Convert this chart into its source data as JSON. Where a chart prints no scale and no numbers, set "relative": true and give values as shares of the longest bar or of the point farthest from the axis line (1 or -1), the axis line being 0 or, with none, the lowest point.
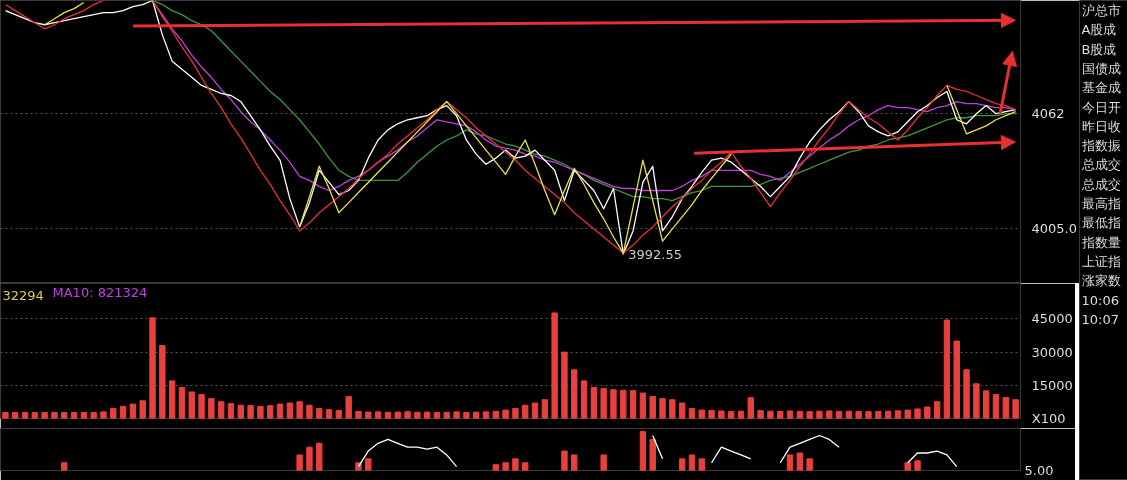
{
  "chart_data": [
    {
      "type": "line",
      "ylim": [
        3978,
        4118
      ],
      "yticks": [
        4062,
        {
          "value": 4005,
          "label": "4005.0"
        }
      ],
      "grid": "y",
      "tick_labels": "y",
      "categories": [
        null,
        null,
        null,
        null,
        null,
        null,
        null,
        null,
        null,
        null,
        null,
        null,
        null,
        null,
        null,
        null,
        null,
        null,
        null,
        null,
        null,
        null,
        null,
        null,
        null,
        null,
        null,
        null,
        null,
        null,
        null,
        null,
        null,
        null,
        null,
        null,
        null,
        null,
        null,
        null,
        null,
        null,
        null,
        null,
        null,
        null,
        null,
        null,
        null,
        null,
        null,
        null,
        null,
        null,
        null,
        null,
        null,
        null,
        null,
        null,
        null,
        null,
        null,
        null,
        null,
        null,
        null,
        null,
        null,
        null,
        null,
        null,
        null,
        null,
        null,
        null,
        null,
        null,
        null,
        null,
        null,
        null,
        null,
        null,
        null,
        null,
        null,
        null,
        null,
        null,
        null,
        null,
        null,
        null,
        null,
        null,
        null,
        null,
        null,
        null,
        null,
        null,
        null,
        null
      ],
      "series": [
        {
          "color": "#3a9a3a",
          "values": [
            null,
            null,
            null,
            null,
            null,
            null,
            null,
            null,
            null,
            null,
            null,
            null,
            null,
            null,
            null,
            4118,
            4116,
            4113,
            4111,
            4108,
            4106,
            4103,
            4098,
            4093,
            4088,
            4083,
            4078,
            4073,
            4069,
            4064,
            4059,
            4053,
            4047,
            4040,
            4034,
            4031,
            4029,
            4029,
            4029,
            4029,
            4029,
            4033,
            4038,
            4042,
            4046,
            4049,
            4051,
            4054,
            4052,
            4051,
            4049,
            4047,
            4046,
            4044,
            4042,
            4041,
            4039,
            4037,
            4034,
            4032,
            4029,
            4027,
            4025,
            4023,
            4021,
            4021,
            4020,
            4020,
            4019,
            4021,
            4023,
            4024,
            4026,
            4026,
            4026,
            4026,
            4026,
            4027,
            4029,
            4030,
            4031,
            4033,
            4035,
            4037,
            4039,
            4041,
            4043,
            4044,
            4046,
            4047,
            4049,
            4050,
            4051,
            4053,
            4055,
            4057,
            4059,
            4060,
            4060,
            4061,
            4061,
            4061,
            4062,
            4062
          ]
        },
        {
          "color": "#c040e0",
          "values": [
            null,
            null,
            null,
            null,
            null,
            null,
            null,
            null,
            null,
            null,
            null,
            null,
            null,
            null,
            null,
            4118,
            4111,
            4104,
            4098,
            4091,
            4085,
            4080,
            4074,
            4069,
            4063,
            4058,
            4054,
            4049,
            4044,
            4038,
            4031,
            4029,
            4026,
            4024,
            4026,
            4029,
            4031,
            4034,
            4038,
            4041,
            4044,
            4048,
            4051,
            4055,
            4059,
            4058,
            4057,
            4056,
            4053,
            4049,
            4046,
            4045,
            4044,
            4042,
            4041,
            4039,
            4038,
            4036,
            4034,
            4032,
            4030,
            4028,
            4026,
            4025,
            4025,
            4024,
            4024,
            4024,
            4024,
            4026,
            4029,
            4031,
            4034,
            4034,
            4034,
            4034,
            4034,
            4032,
            4031,
            4029,
            4033,
            4037,
            4041,
            4045,
            4049,
            4052,
            4056,
            4059,
            4061,
            4064,
            4066,
            4065,
            4065,
            4064,
            4063,
            4065,
            4066,
            4068,
            4067,
            4067,
            4066,
            4065,
            4065,
            4064
          ]
        },
        {
          "color": "#ffffff",
          "values": [
            4113,
            4111,
            4109,
            4107,
            4106,
            4107,
            4108,
            4109,
            4110,
            4111,
            4112,
            4112,
            4113,
            4115,
            4116,
            4118,
            4101,
            4088,
            4084,
            4080,
            4076,
            4074,
            4072,
            4071,
            4068,
            4061,
            4054,
            4046,
            4039,
            4020,
            4006,
            4018,
            4034,
            4028,
            4022,
            4024,
            4029,
            4040,
            4049,
            4054,
            4057,
            4059,
            4060,
            4061,
            4064,
            4066,
            4061,
            4049,
            4042,
            4037,
            4040,
            4044,
            4040,
            4041,
            4044,
            4039,
            4034,
            4019,
            4034,
            4029,
            4024,
            4015,
            4025,
            3992.55,
            4004,
            4028,
            4036,
            4004,
            4011,
            4020,
            4026,
            4033,
            4039,
            4040,
            4038,
            4034,
            4030,
            4026,
            4021,
            4026,
            4031,
            4040,
            4048,
            4054,
            4059,
            4063,
            4068,
            4063,
            4056,
            4053,
            4051,
            4053,
            4058,
            4063,
            4066,
            4070,
            4073,
            4059,
            4057,
            4062,
            4066,
            4062,
            4063,
            4064
          ],
          "value_labels": [
            null,
            null,
            null,
            null,
            null,
            null,
            null,
            null,
            null,
            null,
            null,
            null,
            null,
            null,
            null,
            null,
            null,
            null,
            null,
            null,
            null,
            null,
            null,
            null,
            null,
            null,
            null,
            null,
            null,
            null,
            null,
            null,
            null,
            null,
            null,
            null,
            null,
            null,
            null,
            null,
            null,
            null,
            null,
            null,
            null,
            null,
            null,
            null,
            null,
            null,
            null,
            null,
            null,
            null,
            null,
            null,
            null,
            null,
            null,
            null,
            null,
            null,
            null,
            "3992.55",
            null,
            null,
            null,
            null,
            null,
            null,
            null,
            null,
            null,
            null,
            null,
            null,
            null,
            null,
            null,
            null,
            null,
            null,
            null,
            null,
            null,
            null,
            null,
            null,
            null,
            null,
            null,
            null,
            null,
            null,
            null,
            null,
            null,
            null,
            null,
            null,
            null,
            null,
            null,
            null
          ]
        },
        {
          "color": "#e83030",
          "values": [
            4116,
            4113,
            4110,
            4107,
            4104,
            4106,
            4109,
            4111,
            4113,
            4116,
            4118,
            null,
            null,
            null,
            null,
            4118,
            4110,
            4103,
            4095,
            4088,
            4080,
            4072,
            4065,
            4057,
            4050,
            4042,
            4034,
            4027,
            4019,
            4012,
            4004,
            4008,
            4013,
            4017,
            4021,
            4025,
            4030,
            4034,
            4038,
            4042,
            4047,
            4051,
            4055,
            4059,
            4064,
            4068,
            4064,
            4060,
            4055,
            4051,
            4047,
            4043,
            4039,
            4034,
            4030,
            4026,
            4022,
            4018,
            4013,
            4009,
            4005,
            4001,
            3997,
            3993,
            3997,
            4002,
            4006,
            4011,
            4016,
            4020,
            4025,
            4029,
            4034,
            4038,
            4043,
            4036,
            4030,
            4023,
            4016,
            4023,
            4029,
            4036,
            4042,
            4049,
            4055,
            4062,
            4068,
            4064,
            4060,
            4057,
            4053,
            4049,
            4054,
            4060,
            4065,
            4071,
            4076,
            4074,
            4073,
            4071,
            4069,
            4067,
            4066,
            4064
          ]
        },
        {
          "color": "#f0e040",
          "values": [
            null,
            null,
            null,
            null,
            4106,
            4109,
            4112,
            4114,
            4117,
            null,
            null,
            null,
            null,
            null,
            null,
            null,
            null,
            null,
            null,
            null,
            null,
            null,
            null,
            null,
            null,
            null,
            null,
            null,
            null,
            null,
            4006,
            4021,
            4036,
            4025,
            4013,
            4018,
            4023,
            4028,
            4033,
            4038,
            4043,
            4048,
            4053,
            4058,
            4063,
            4068,
            4062,
            4056,
            4050,
            4044,
            4038,
            4032,
            4041,
            4049,
            4037,
            4024,
            4012,
            4024,
            4035,
            4027,
            4018,
            4010,
            4001,
            3993,
            4016,
            4039,
            4019,
            3999,
            4005,
            4011,
            4017,
            4024,
            4030,
            4036,
            4042,
            null,
            null,
            null,
            null,
            null,
            null,
            null,
            null,
            null,
            null,
            null,
            null,
            null,
            null,
            null,
            null,
            null,
            null,
            null,
            null,
            null,
            4076,
            4064,
            4052,
            4054,
            4056,
            4059,
            4061,
            4063
          ]
        }
      ]
    },
    {
      "type": "bar",
      "categories": [
        null,
        null,
        null,
        null,
        null,
        null,
        null,
        null,
        null,
        null,
        null,
        null,
        null,
        null,
        null,
        null,
        null,
        null,
        null,
        null,
        null,
        null,
        null,
        null,
        null,
        null,
        null,
        null,
        null,
        null,
        null,
        null,
        null,
        null,
        null,
        null,
        null,
        null,
        null,
        null,
        null,
        null,
        null,
        null,
        null,
        null,
        null,
        null,
        null,
        null,
        null,
        null,
        null,
        null,
        null,
        null,
        null,
        null,
        null,
        null,
        null,
        null,
        null,
        null,
        null,
        null,
        null,
        null,
        null,
        null,
        null,
        null,
        null,
        null,
        null,
        null,
        null,
        null,
        null,
        null,
        null,
        null,
        null,
        null,
        null,
        null,
        null,
        null,
        null,
        null,
        null,
        null,
        null,
        null,
        null,
        null,
        null,
        null,
        null,
        null,
        null,
        null,
        null,
        null
      ],
      "values": [
        2700,
        2700,
        2800,
        2700,
        2700,
        2800,
        2700,
        2700,
        2700,
        2700,
        3000,
        4500,
        5500,
        6500,
        8000,
        45500,
        33000,
        17000,
        14000,
        12000,
        10800,
        9000,
        7600,
        6800,
        6000,
        5900,
        5500,
        5800,
        6500,
        7000,
        7600,
        6000,
        4500,
        4000,
        3600,
        9900,
        3200,
        2900,
        3000,
        2800,
        2900,
        3100,
        2800,
        2900,
        2700,
        2800,
        3000,
        2700,
        2900,
        3000,
        3200,
        3800,
        4500,
        6000,
        7000,
        8500,
        47700,
        30000,
        22000,
        17000,
        14000,
        13500,
        13000,
        12800,
        12600,
        11500,
        10000,
        9000,
        8500,
        7000,
        4500,
        3800,
        3600,
        3400,
        3200,
        3300,
        9400,
        3600,
        3300,
        3200,
        3400,
        3200,
        3100,
        3300,
        3400,
        3200,
        3300,
        3200,
        3100,
        3200,
        3300,
        3500,
        3800,
        4300,
        5200,
        7600,
        44500,
        35000,
        22000,
        15700,
        12500,
        10800,
        9500,
        8500
      ],
      "color": "#e8413c",
      "ylim": [
        0,
        61000
      ],
      "yticks": [
        15000,
        30000,
        45000
      ],
      "grid": "y",
      "tick_labels": "y",
      "annotations": [
        "32294",
        "MA10: 821324",
        "X100"
      ]
    },
    {
      "type": "bar",
      "relative": true,
      "tick_labels": false,
      "categories": [
        null,
        null,
        null,
        null,
        null,
        null,
        null,
        null,
        null,
        null,
        null,
        null,
        null,
        null,
        null,
        null,
        null,
        null,
        null,
        null,
        null,
        null,
        null,
        null,
        null,
        null,
        null,
        null,
        null,
        null,
        null,
        null,
        null,
        null,
        null,
        null,
        null,
        null,
        null,
        null,
        null,
        null,
        null,
        null,
        null,
        null,
        null,
        null,
        null,
        null,
        null,
        null,
        null,
        null,
        null,
        null,
        null,
        null,
        null,
        null,
        null,
        null,
        null,
        null,
        null,
        null,
        null,
        null,
        null,
        null,
        null,
        null,
        null,
        null,
        null,
        null,
        null,
        null,
        null,
        null,
        null,
        null,
        null,
        null,
        null,
        null,
        null,
        null,
        null,
        null,
        null,
        null,
        null,
        null,
        null,
        null,
        null,
        null,
        null,
        null,
        null,
        null,
        null,
        null
      ],
      "series": [
        {
          "color": "#e8413c",
          "values": [
            null,
            null,
            null,
            null,
            null,
            null,
            0.2,
            null,
            null,
            null,
            null,
            null,
            null,
            null,
            null,
            null,
            null,
            null,
            null,
            null,
            null,
            null,
            null,
            null,
            null,
            null,
            null,
            null,
            null,
            null,
            0.4,
            0.6,
            0.7,
            null,
            null,
            null,
            0.2,
            0.3,
            null,
            null,
            null,
            null,
            null,
            null,
            null,
            null,
            null,
            null,
            null,
            null,
            0.15,
            0.2,
            0.3,
            0.2,
            null,
            null,
            null,
            0.5,
            0.4,
            null,
            null,
            0.4,
            null,
            null,
            null,
            1,
            0.8,
            null,
            null,
            0.3,
            0.4,
            0.3,
            null,
            null,
            null,
            null,
            null,
            null,
            null,
            null,
            0.4,
            0.45,
            0.3,
            null,
            null,
            null,
            null,
            null,
            null,
            null,
            null,
            null,
            0.2,
            0.25,
            null,
            null,
            null,
            null,
            null,
            null,
            null,
            null,
            null,
            null
          ]
        },
        {
          "type": "line",
          "color": "#ffffff",
          "values": [
            null,
            null,
            null,
            null,
            null,
            null,
            null,
            null,
            null,
            null,
            null,
            null,
            null,
            null,
            null,
            null,
            null,
            null,
            null,
            null,
            null,
            null,
            null,
            null,
            null,
            null,
            null,
            null,
            null,
            null,
            null,
            null,
            null,
            null,
            null,
            null,
            0.1,
            0.5,
            0.7,
            0.8,
            0.7,
            0.6,
            0.6,
            0.55,
            0.6,
            0.4,
            0.1,
            null,
            null,
            null,
            null,
            null,
            null,
            null,
            null,
            null,
            null,
            null,
            null,
            null,
            null,
            null,
            null,
            null,
            null,
            null,
            0.9,
            0.3,
            null,
            null,
            null,
            null,
            0.2,
            0.6,
            0.5,
            0.4,
            0.3,
            null,
            null,
            0.2,
            0.6,
            0.7,
            0.8,
            0.9,
            0.8,
            0.6,
            null,
            null,
            null,
            null,
            null,
            null,
            0.2,
            0.45,
            0.45,
            0.5,
            0.4,
            0.1,
            null,
            null,
            null,
            null,
            null,
            null
          ]
        }
      ],
      "annotations": [
        "5.00"
      ]
    },
    {
      "type": "other",
      "annotations": [
        "沪总市",
        "A股成",
        "B股成",
        "国债成",
        "基金成",
        "今日开",
        "昨日收",
        "指数振",
        "总成交",
        "总成交",
        "最高指",
        "最低指",
        "指数量",
        "上证指",
        "涨家数",
        "10:06",
        "10:07"
      ]
    }
  ]
}
